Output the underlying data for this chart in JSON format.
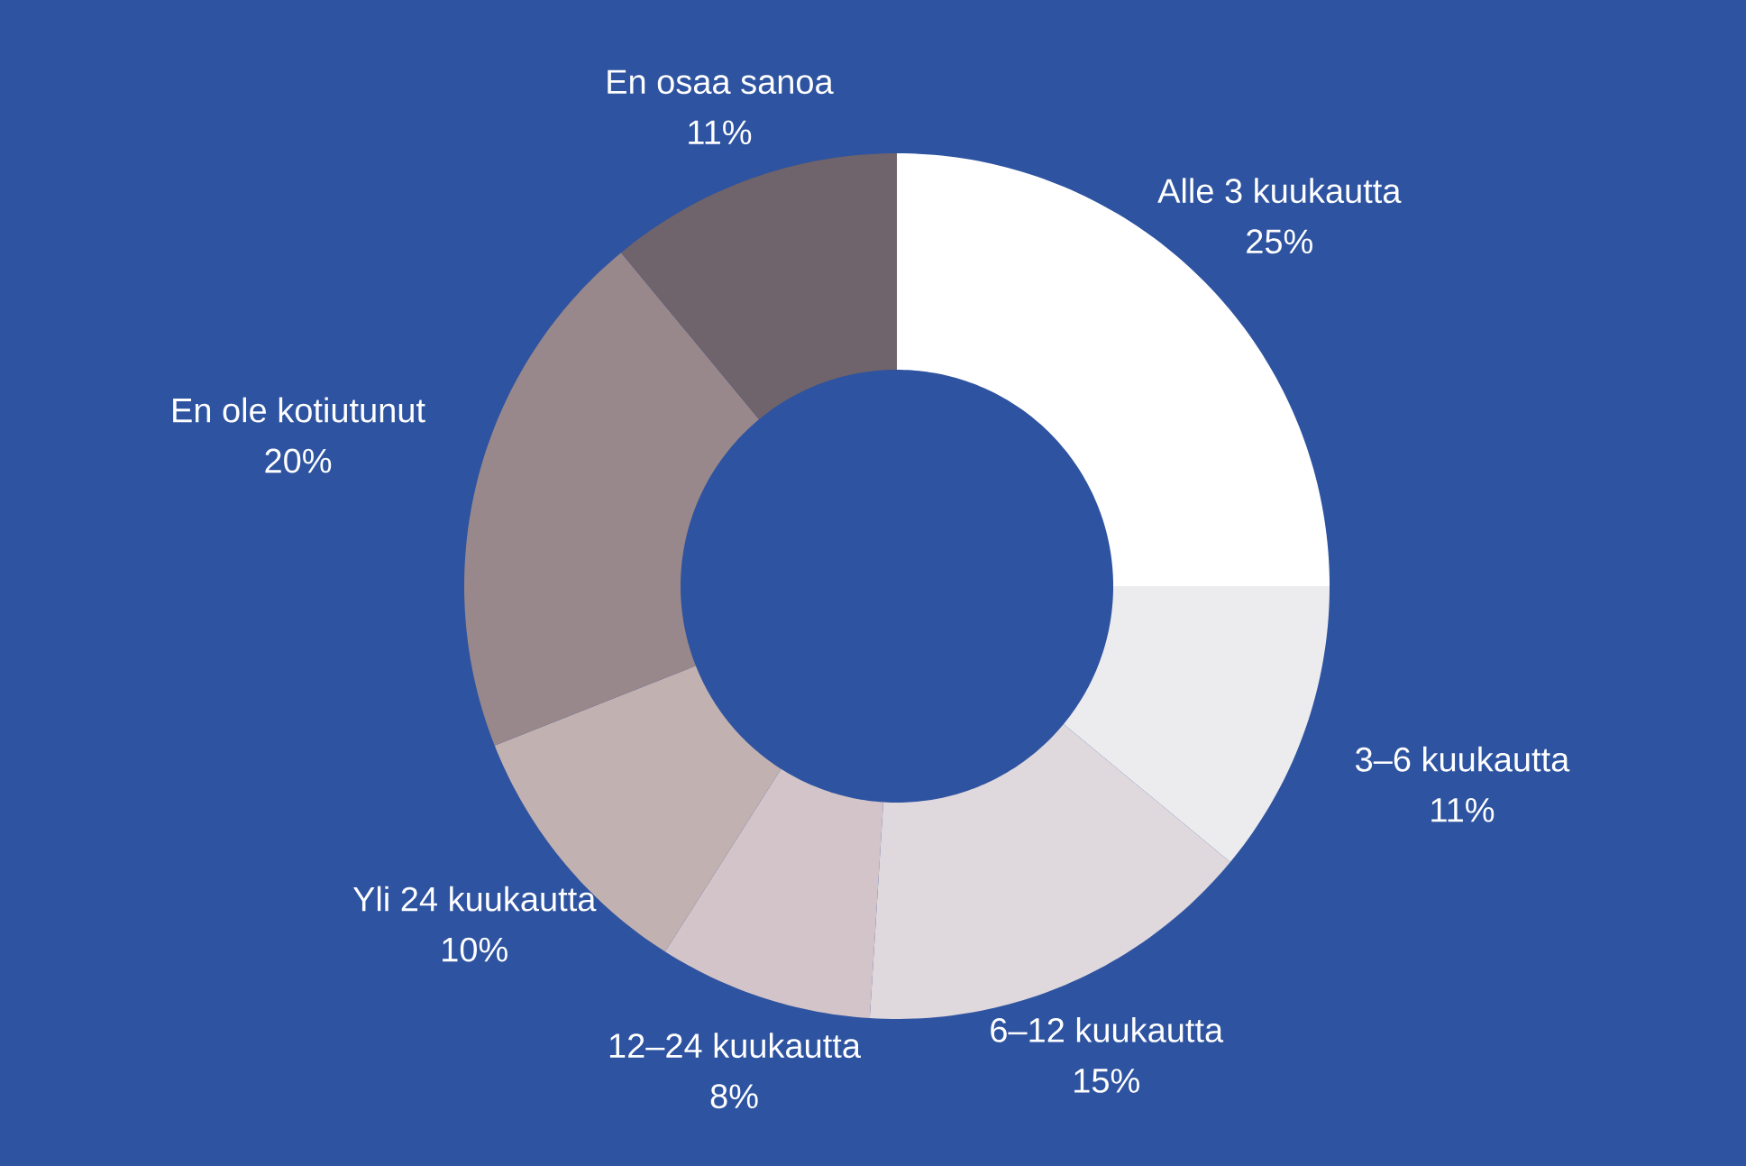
{
  "chart_data": {
    "type": "donut",
    "categories": [
      "Alle 3 kuukautta",
      "3–6 kuukautta",
      "6–12 kuukautta",
      "12–24 kuukautta",
      "Yli 24 kuukautta",
      "En ole kotiutunut",
      "En osaa sanoa"
    ],
    "values": [
      25,
      11,
      15,
      8,
      10,
      20,
      11
    ],
    "value_labels": [
      "25%",
      "11%",
      "15%",
      "8%",
      "10%",
      "20%",
      "11%"
    ],
    "colors": [
      "#ffffff",
      "#ecebee",
      "#dfd8dd",
      "#d3c4c9",
      "#c2b1b1",
      "#98888b",
      "#6f636c"
    ]
  }
}
